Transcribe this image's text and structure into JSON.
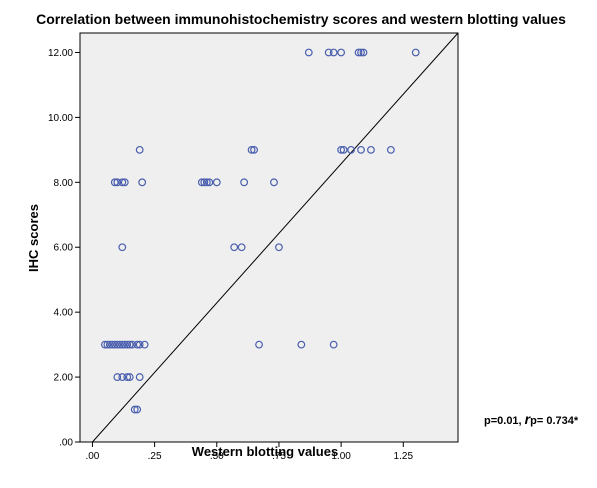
{
  "chart_data": {
    "type": "scatter",
    "title": "Correlation between immunohistochemistry scores and western blotting values",
    "xlabel": "Western blotting values",
    "ylabel": "IHC scores",
    "xlim": [
      -0.05,
      1.47
    ],
    "ylim": [
      0,
      12.6
    ],
    "xticks": [
      0.0,
      0.25,
      0.5,
      0.75,
      1.0,
      1.25
    ],
    "xtick_labels": [
      ".00",
      ".25",
      ".50",
      ".75",
      "1.00",
      "1.25"
    ],
    "yticks": [
      0,
      2,
      4,
      6,
      8,
      10,
      12
    ],
    "ytick_labels": [
      ".00",
      "2.00",
      "4.00",
      "6.00",
      "8.00",
      "10.00",
      "12.00"
    ],
    "grid": false,
    "reference_line": {
      "from": [
        0.0,
        0.0
      ],
      "to": [
        1.47,
        12.6
      ]
    },
    "annotation": {
      "prefix": "p=0.01, ",
      "r": "r",
      "suffix": "p= 0.734*"
    },
    "colors": {
      "marker": "#4a5fae",
      "plot_bg": "#efefef",
      "line": "#000000"
    },
    "points": [
      [
        0.87,
        12
      ],
      [
        0.95,
        12
      ],
      [
        0.97,
        12
      ],
      [
        1.0,
        12
      ],
      [
        1.07,
        12
      ],
      [
        1.08,
        12
      ],
      [
        1.09,
        12
      ],
      [
        1.3,
        12
      ],
      [
        0.19,
        9
      ],
      [
        0.64,
        9
      ],
      [
        0.65,
        9
      ],
      [
        1.0,
        9
      ],
      [
        1.01,
        9
      ],
      [
        1.04,
        9
      ],
      [
        1.08,
        9
      ],
      [
        1.12,
        9
      ],
      [
        1.2,
        9
      ],
      [
        0.09,
        8
      ],
      [
        0.1,
        8
      ],
      [
        0.12,
        8
      ],
      [
        0.13,
        8
      ],
      [
        0.2,
        8
      ],
      [
        0.44,
        8
      ],
      [
        0.45,
        8
      ],
      [
        0.46,
        8
      ],
      [
        0.47,
        8
      ],
      [
        0.5,
        8
      ],
      [
        0.61,
        8
      ],
      [
        0.73,
        8
      ],
      [
        0.12,
        6
      ],
      [
        0.57,
        6
      ],
      [
        0.6,
        6
      ],
      [
        0.75,
        6
      ],
      [
        0.05,
        3
      ],
      [
        0.06,
        3
      ],
      [
        0.07,
        3
      ],
      [
        0.08,
        3
      ],
      [
        0.09,
        3
      ],
      [
        0.1,
        3
      ],
      [
        0.11,
        3
      ],
      [
        0.12,
        3
      ],
      [
        0.13,
        3
      ],
      [
        0.14,
        3
      ],
      [
        0.15,
        3
      ],
      [
        0.16,
        3
      ],
      [
        0.18,
        3
      ],
      [
        0.19,
        3
      ],
      [
        0.21,
        3
      ],
      [
        0.67,
        3
      ],
      [
        0.84,
        3
      ],
      [
        0.97,
        3
      ],
      [
        0.1,
        2
      ],
      [
        0.12,
        2
      ],
      [
        0.14,
        2
      ],
      [
        0.15,
        2
      ],
      [
        0.19,
        2
      ],
      [
        0.17,
        1
      ],
      [
        0.18,
        1
      ]
    ]
  }
}
